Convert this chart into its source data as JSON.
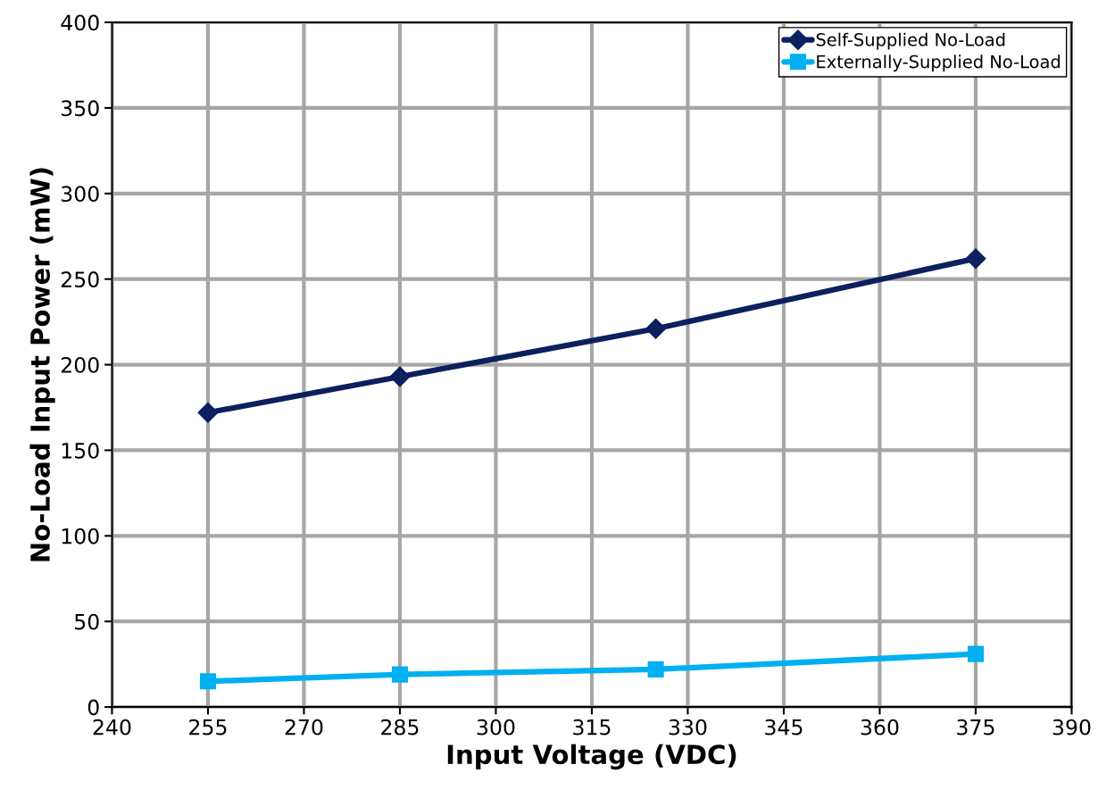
{
  "chart_data": {
    "type": "line",
    "xlabel": "Input Voltage (VDC)",
    "ylabel": "No-Load Input Power (mW)",
    "x": [
      255,
      285,
      325,
      375
    ],
    "series": [
      {
        "name": "Self-Supplied No-Load",
        "color": "#0c1f5e",
        "marker": "diamond",
        "values": [
          172,
          193,
          221,
          262
        ]
      },
      {
        "name": "Externally-Supplied No-Load",
        "color": "#00b0f0",
        "marker": "square",
        "values": [
          15,
          19,
          22,
          31
        ]
      }
    ],
    "xlim": [
      240,
      390
    ],
    "xticks": [
      240,
      255,
      270,
      285,
      300,
      315,
      330,
      345,
      360,
      375,
      390
    ],
    "ylim": [
      0,
      400
    ],
    "yticks": [
      0,
      50,
      100,
      150,
      200,
      250,
      300,
      350,
      400
    ],
    "grid": true,
    "legend": "top right",
    "line_style": "solid"
  }
}
